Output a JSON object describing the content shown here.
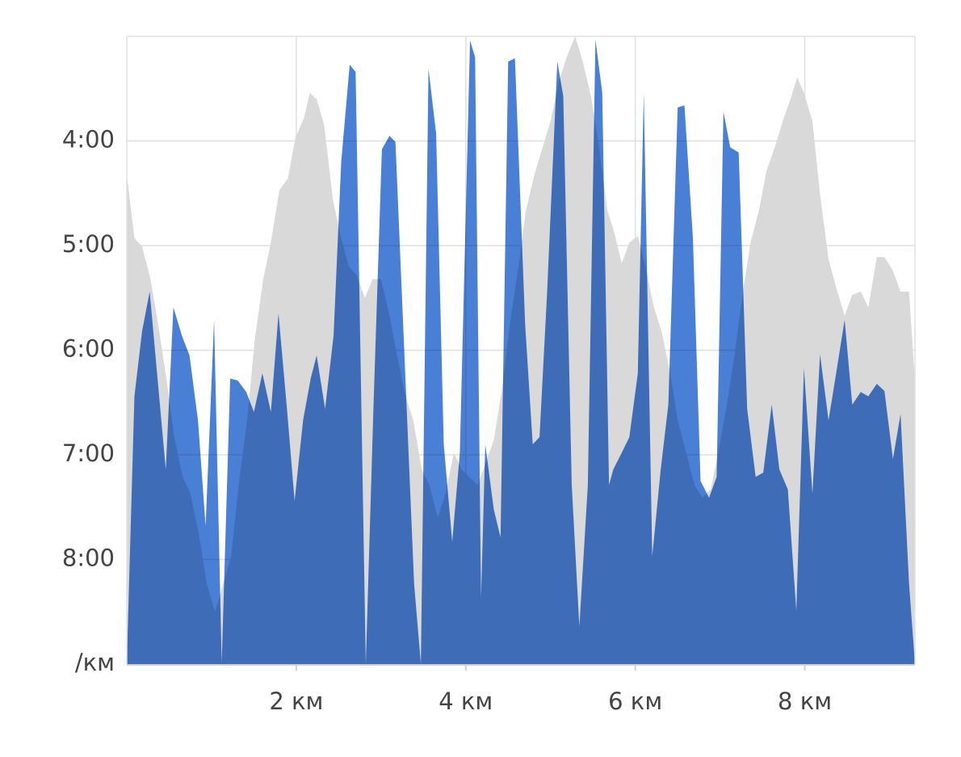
{
  "chart_data": {
    "type": "area",
    "xlim": [
      0,
      9.3
    ],
    "xticks": [
      {
        "value": 2,
        "label": "2 км"
      },
      {
        "value": 4,
        "label": "4 км"
      },
      {
        "value": 6,
        "label": "6 км"
      },
      {
        "value": 8,
        "label": "8 км"
      }
    ],
    "ylim": [
      9,
      3
    ],
    "yticks": [
      {
        "value": 9,
        "label": "/км"
      },
      {
        "value": 8,
        "label": "8:00"
      },
      {
        "value": 7,
        "label": "7:00"
      },
      {
        "value": 6,
        "label": "6:00"
      },
      {
        "value": 5,
        "label": "5:00"
      },
      {
        "value": 4,
        "label": "4:00"
      }
    ],
    "grid": true,
    "series": [
      {
        "color": "#d9d9d9",
        "x": [
          0,
          0.09,
          0.18,
          0.28,
          0.37,
          0.47,
          0.56,
          0.66,
          0.75,
          0.85,
          0.94,
          1.04,
          1.23,
          1.32,
          1.42,
          1.51,
          1.61,
          1.7,
          1.8,
          1.9,
          1.99,
          2.09,
          2.16,
          2.24,
          2.33,
          2.43,
          2.52,
          2.62,
          2.71,
          2.81,
          2.9,
          3.0,
          3.1,
          3.19,
          3.29,
          3.38,
          3.48,
          3.57,
          3.67,
          3.76,
          3.86,
          3.95,
          4.14,
          4.33,
          4.43,
          4.52,
          4.62,
          4.71,
          4.81,
          4.9,
          5.0,
          5.1,
          5.19,
          5.29,
          5.38,
          5.48,
          5.57,
          5.67,
          5.76,
          5.84,
          5.93,
          6.03,
          6.12,
          6.22,
          6.31,
          6.41,
          6.5,
          6.6,
          6.7,
          6.79,
          6.89,
          6.98,
          7.08,
          7.17,
          7.27,
          7.36,
          7.46,
          7.55,
          7.65,
          7.74,
          7.84,
          7.91,
          7.99,
          8.09,
          8.18,
          8.28,
          8.37,
          8.47,
          8.56,
          8.66,
          8.75,
          8.85,
          8.94,
          9.04,
          9.13,
          9.23,
          9.3
        ],
        "values": [
          4.32,
          4.93,
          5.01,
          5.32,
          5.75,
          6.29,
          6.83,
          7.21,
          7.37,
          7.75,
          8.22,
          8.5,
          7.98,
          7.29,
          6.67,
          5.9,
          5.32,
          4.97,
          4.47,
          4.36,
          3.97,
          3.78,
          3.54,
          3.6,
          3.85,
          4.55,
          4.9,
          5.2,
          5.28,
          5.5,
          5.32,
          5.32,
          5.67,
          6.05,
          6.44,
          6.67,
          7.14,
          7.29,
          7.6,
          7.37,
          6.98,
          7.14,
          7.29,
          6.86,
          6.36,
          5.75,
          5.2,
          4.66,
          4.32,
          4.08,
          3.81,
          3.43,
          3.2,
          3.0,
          3.24,
          3.58,
          4.05,
          4.66,
          4.9,
          5.17,
          4.97,
          4.91,
          5.2,
          5.59,
          5.82,
          6.21,
          6.67,
          6.98,
          7.29,
          7.41,
          7.33,
          6.98,
          6.52,
          6.05,
          5.44,
          4.97,
          4.66,
          4.28,
          4.05,
          3.81,
          3.58,
          3.39,
          3.54,
          3.81,
          4.51,
          5.13,
          5.4,
          5.67,
          5.47,
          5.44,
          5.59,
          5.11,
          5.11,
          5.24,
          5.44,
          5.44,
          6.29
        ]
      },
      {
        "color": "#4a7fd6",
        "x": [
          0,
          0.09,
          0.18,
          0.27,
          0.46,
          0.55,
          0.65,
          0.74,
          0.84,
          0.93,
          1.03,
          1.12,
          1.22,
          1.31,
          1.41,
          1.5,
          1.6,
          1.7,
          1.79,
          1.89,
          1.98,
          2.08,
          2.17,
          2.24,
          2.34,
          2.44,
          2.53,
          2.63,
          2.7,
          2.82,
          2.91,
          3.01,
          3.1,
          3.17,
          3.39,
          3.47,
          3.56,
          3.65,
          3.74,
          3.84,
          3.93,
          4.05,
          4.11,
          4.18,
          4.23,
          4.33,
          4.41,
          4.5,
          4.58,
          4.7,
          4.79,
          4.87,
          4.96,
          5.08,
          5.15,
          5.25,
          5.34,
          5.44,
          5.53,
          5.61,
          5.69,
          5.74,
          5.84,
          5.93,
          6.03,
          6.1,
          6.2,
          6.3,
          6.39,
          6.5,
          6.58,
          6.68,
          6.77,
          6.87,
          6.96,
          7.04,
          7.12,
          7.22,
          7.32,
          7.42,
          7.51,
          7.61,
          7.7,
          7.8,
          7.9,
          7.99,
          8.09,
          8.18,
          8.28,
          8.37,
          8.47,
          8.56,
          8.66,
          8.75,
          8.85,
          8.94,
          9.04,
          9.13,
          9.23,
          9.3
        ],
        "values": [
          9.0,
          6.44,
          5.82,
          5.44,
          7.14,
          5.59,
          5.86,
          6.05,
          6.67,
          7.68,
          5.71,
          8.99,
          6.27,
          6.29,
          6.4,
          6.59,
          6.22,
          6.59,
          5.65,
          6.56,
          7.44,
          6.67,
          6.27,
          6.05,
          6.56,
          5.86,
          4.2,
          3.27,
          3.34,
          9.0,
          6.56,
          4.08,
          3.95,
          4.01,
          8.23,
          9.0,
          3.31,
          3.93,
          6.9,
          7.83,
          6.98,
          3.04,
          3.2,
          8.37,
          6.9,
          7.52,
          7.79,
          3.24,
          3.21,
          5.75,
          6.9,
          6.83,
          5.44,
          3.24,
          3.57,
          7.29,
          8.64,
          7.29,
          3.03,
          3.54,
          7.29,
          7.14,
          6.98,
          6.83,
          6.22,
          3.54,
          7.97,
          7.14,
          6.52,
          3.68,
          3.66,
          4.93,
          7.25,
          7.41,
          7.21,
          3.72,
          4.06,
          4.11,
          6.56,
          7.21,
          7.17,
          6.52,
          7.14,
          7.33,
          8.49,
          6.17,
          7.37,
          6.04,
          6.67,
          6.22,
          5.71,
          6.52,
          6.4,
          6.44,
          6.32,
          6.39,
          7.04,
          6.61,
          8.23,
          9.0
        ]
      }
    ]
  }
}
